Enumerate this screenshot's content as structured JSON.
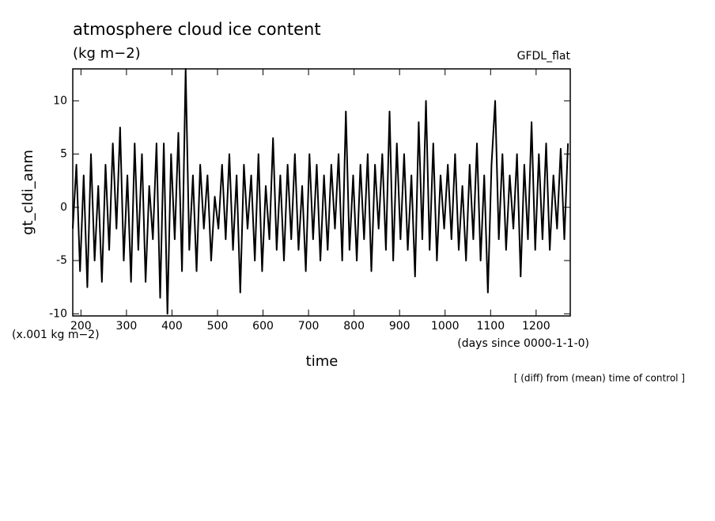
{
  "chart_data": {
    "type": "line",
    "title": "atmosphere cloud ice content",
    "subtitle": "(kg m−2)",
    "annotation_right": "GFDL_flat",
    "ylabel": "gt_cldi_anm",
    "y_units": "(x.001 kg m−2)",
    "x_units": "(days since 0000-1-1-0)",
    "xlabel": "time",
    "footnote": "[ (diff) from (mean) time of control ]",
    "xlim": [
      182,
      1275
    ],
    "ylim": [
      -10.2,
      13
    ],
    "xticks": [
      200,
      300,
      400,
      500,
      600,
      700,
      800,
      900,
      1000,
      1100,
      1200
    ],
    "yticks": [
      -10,
      -5,
      0,
      5,
      10
    ],
    "color": "#000000",
    "x": [
      182,
      190,
      198,
      206,
      214,
      222,
      230,
      238,
      246,
      254,
      262,
      270,
      278,
      286,
      294,
      302,
      310,
      318,
      326,
      334,
      342,
      350,
      358,
      366,
      374,
      382,
      390,
      398,
      406,
      414,
      422,
      430,
      438,
      446,
      454,
      462,
      470,
      478,
      486,
      494,
      502,
      510,
      518,
      526,
      534,
      542,
      550,
      558,
      566,
      574,
      582,
      590,
      598,
      606,
      614,
      622,
      630,
      638,
      646,
      654,
      662,
      670,
      678,
      686,
      694,
      702,
      710,
      718,
      726,
      734,
      742,
      750,
      758,
      766,
      774,
      782,
      790,
      798,
      806,
      814,
      822,
      830,
      838,
      846,
      854,
      862,
      870,
      878,
      886,
      894,
      902,
      910,
      918,
      926,
      934,
      942,
      950,
      958,
      966,
      974,
      982,
      990,
      998,
      1006,
      1014,
      1022,
      1030,
      1038,
      1046,
      1054,
      1062,
      1070,
      1078,
      1086,
      1094,
      1102,
      1110,
      1118,
      1126,
      1134,
      1142,
      1150,
      1158,
      1166,
      1174,
      1182,
      1190,
      1198,
      1206,
      1214,
      1222,
      1230,
      1238,
      1246,
      1254,
      1262,
      1270
    ],
    "values": [
      -2,
      4,
      -6,
      3,
      -7.5,
      5,
      -5,
      2,
      -7,
      4,
      -4,
      6,
      -2,
      7.5,
      -5,
      3,
      -7,
      6,
      -4,
      5,
      -7,
      2,
      -3,
      6,
      -8.5,
      6,
      -10,
      5,
      -3,
      7,
      -6,
      13,
      -4,
      3,
      -6,
      4,
      -2,
      3,
      -5,
      1,
      -2,
      4,
      -3,
      5,
      -4,
      3,
      -8,
      4,
      -2,
      3,
      -5,
      5,
      -6,
      2,
      -3,
      6.5,
      -4,
      3,
      -5,
      4,
      -3,
      5,
      -4,
      2,
      -6,
      5,
      -3,
      4,
      -5,
      3,
      -4,
      4,
      -2,
      5,
      -5,
      9,
      -4,
      3,
      -5,
      4,
      -3,
      5,
      -6,
      4,
      -2,
      5,
      -4,
      9,
      -5,
      6,
      -3,
      5,
      -4,
      3,
      -6.5,
      8,
      -3,
      10,
      -4,
      6,
      -5,
      3,
      -2,
      4,
      -3,
      5,
      -4,
      2,
      -5,
      4,
      -3,
      6,
      -5,
      3,
      -8,
      4,
      10,
      -3,
      5,
      -4,
      3,
      -2,
      5,
      -6.5,
      4,
      -3,
      8,
      -4,
      5,
      -3,
      6,
      -4,
      3,
      -2,
      5.5,
      -3,
      6
    ]
  }
}
